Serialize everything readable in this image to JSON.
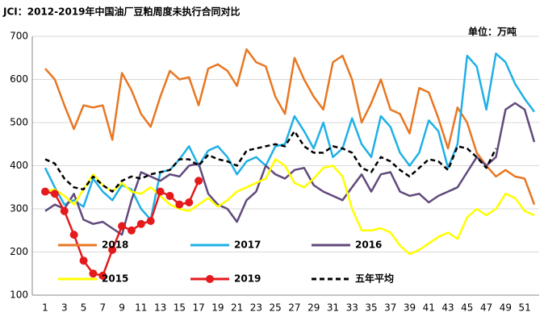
{
  "chart_data": {
    "type": "line",
    "title": "JCI：2012-2019年中国油厂豆粕周度未执行合同对比",
    "subtitle": "单位：万吨",
    "categories": [
      "1",
      null,
      "3",
      null,
      "5",
      null,
      "7",
      null,
      "9",
      null,
      "11",
      null,
      "13",
      null,
      "15",
      null,
      "17",
      null,
      "19",
      null,
      "21",
      null,
      "23",
      null,
      "25",
      null,
      "27",
      null,
      "29",
      null,
      "31",
      null,
      "33",
      null,
      "35",
      null,
      "37",
      null,
      "39",
      null,
      "41",
      null,
      "43",
      null,
      "45",
      null,
      "47",
      null,
      "49",
      null,
      "51",
      null
    ],
    "ylim": [
      100,
      700
    ],
    "yticks": [
      100,
      200,
      300,
      400,
      500,
      600,
      700
    ],
    "grid": true,
    "series": [
      {
        "name": "2018",
        "color": "#e87722",
        "values": [
          625,
          600,
          540,
          485,
          540,
          535,
          540,
          460,
          615,
          575,
          520,
          490,
          560,
          620,
          600,
          605,
          540,
          625,
          635,
          620,
          585,
          670,
          640,
          630,
          560,
          520,
          650,
          600,
          560,
          530,
          640,
          655,
          600,
          500,
          545,
          600,
          530,
          520,
          475,
          580,
          570,
          510,
          440,
          535,
          500,
          430,
          400,
          375,
          390,
          375,
          370,
          310
        ]
      },
      {
        "name": "2017",
        "color": "#1fb0e6",
        "values": [
          395,
          350,
          310,
          320,
          305,
          370,
          340,
          320,
          355,
          345,
          300,
          275,
          385,
          390,
          415,
          445,
          400,
          435,
          445,
          420,
          380,
          410,
          420,
          400,
          445,
          450,
          515,
          480,
          440,
          500,
          420,
          440,
          510,
          450,
          420,
          515,
          490,
          430,
          400,
          430,
          505,
          480,
          395,
          450,
          655,
          630,
          530,
          660,
          640,
          590,
          555,
          525
        ]
      },
      {
        "name": "2016",
        "color": "#604a7b",
        "values": [
          295,
          310,
          300,
          335,
          275,
          265,
          270,
          255,
          240,
          320,
          385,
          375,
          365,
          380,
          375,
          400,
          405,
          335,
          310,
          300,
          270,
          320,
          340,
          400,
          380,
          370,
          390,
          395,
          355,
          340,
          330,
          320,
          350,
          380,
          340,
          380,
          385,
          340,
          330,
          335,
          315,
          330,
          340,
          350,
          385,
          420,
          400,
          420,
          530,
          545,
          530,
          455
        ]
      },
      {
        "name": "2015",
        "color": "#ffff00",
        "values": [
          340,
          345,
          330,
          310,
          345,
          380,
          355,
          340,
          360,
          340,
          335,
          350,
          330,
          310,
          300,
          295,
          310,
          325,
          305,
          320,
          340,
          350,
          360,
          370,
          415,
          400,
          360,
          350,
          370,
          395,
          400,
          375,
          300,
          250,
          250,
          255,
          245,
          215,
          195,
          205,
          220,
          235,
          245,
          230,
          280,
          300,
          285,
          300,
          335,
          325,
          295,
          285
        ]
      },
      {
        "name": "2019",
        "color": "#e41a1c",
        "marker": "circle",
        "values": [
          340,
          335,
          295,
          240,
          180,
          150,
          145,
          205,
          260,
          250,
          265,
          272,
          340,
          330,
          310,
          315,
          365,
          null,
          null,
          null,
          null,
          null,
          null,
          null,
          null,
          null,
          null,
          null,
          null,
          null,
          null,
          null,
          null,
          null,
          null,
          null,
          null,
          null,
          null,
          null,
          null,
          null,
          null,
          null,
          null,
          null,
          null,
          null,
          null,
          null,
          null,
          null
        ]
      },
      {
        "name": "五年平均",
        "color": "#000000",
        "style": "dashed",
        "values": [
          415,
          405,
          370,
          350,
          345,
          375,
          355,
          340,
          365,
          375,
          370,
          380,
          385,
          390,
          415,
          415,
          400,
          425,
          415,
          410,
          400,
          435,
          440,
          445,
          450,
          445,
          480,
          445,
          430,
          430,
          445,
          440,
          430,
          395,
          385,
          420,
          410,
          390,
          375,
          395,
          415,
          410,
          390,
          445,
          440,
          420,
          395,
          440,
          null,
          null,
          null,
          null
        ]
      }
    ]
  }
}
